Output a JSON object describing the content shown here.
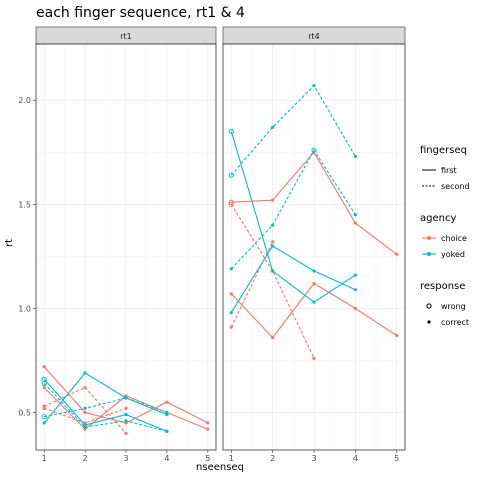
{
  "chart_data": {
    "type": "line",
    "title": "each finger sequence, rt1 & 4",
    "xlabel": "nseenseq",
    "ylabel": "rt",
    "x_ticks": [
      1,
      2,
      3,
      4,
      5
    ],
    "y_ticks": [
      0.5,
      1.0,
      1.5,
      2.0
    ],
    "y_tick_labels": [
      "0.5",
      "1.0",
      "1.5",
      "2.0"
    ],
    "xlim": [
      0.8,
      5.2
    ],
    "ylim": [
      0.32,
      2.27
    ],
    "grid": true,
    "legend_position": "right",
    "colors": {
      "choice": "#f8766d",
      "yoked": "#00bfc4"
    },
    "panels": [
      {
        "label": "rt1",
        "series": [
          {
            "fingerseq": "first",
            "agency": "choice",
            "points": [
              [
                1,
                0.72,
                "correct"
              ],
              [
                2,
                0.5,
                "correct"
              ],
              [
                3,
                0.45,
                "correct"
              ],
              [
                4,
                0.55,
                "correct"
              ],
              [
                5,
                0.45,
                "correct"
              ]
            ]
          },
          {
            "fingerseq": "first",
            "agency": "choice",
            "points": [
              [
                1,
                0.62,
                "correct"
              ],
              [
                2,
                0.42,
                "correct"
              ],
              [
                3,
                0.58,
                "correct"
              ],
              [
                4,
                0.5,
                "correct"
              ],
              [
                5,
                0.42,
                "correct"
              ]
            ]
          },
          {
            "fingerseq": "second",
            "agency": "choice",
            "points": [
              [
                1,
                0.53,
                "correct"
              ],
              [
                2,
                0.62,
                "correct"
              ],
              [
                3,
                0.4,
                "correct"
              ]
            ]
          },
          {
            "fingerseq": "second",
            "agency": "choice",
            "points": [
              [
                1,
                0.52,
                "correct"
              ],
              [
                2,
                0.45,
                "correct"
              ],
              [
                3,
                0.52,
                "correct"
              ]
            ]
          },
          {
            "fingerseq": "first",
            "agency": "yoked",
            "points": [
              [
                1,
                0.45,
                "correct"
              ],
              [
                2,
                0.69,
                "correct"
              ],
              [
                3,
                0.57,
                "correct"
              ],
              [
                4,
                0.49,
                "correct"
              ]
            ]
          },
          {
            "fingerseq": "first",
            "agency": "yoked",
            "points": [
              [
                1,
                0.66,
                "wrong"
              ],
              [
                2,
                0.44,
                "correct"
              ],
              [
                3,
                0.49,
                "correct"
              ],
              [
                4,
                0.41,
                "correct"
              ]
            ]
          },
          {
            "fingerseq": "second",
            "agency": "yoked",
            "points": [
              [
                1,
                0.48,
                "wrong"
              ],
              [
                2,
                0.52,
                "correct"
              ],
              [
                3,
                0.57,
                "correct"
              ],
              [
                4,
                0.5,
                "correct"
              ]
            ]
          },
          {
            "fingerseq": "second",
            "agency": "yoked",
            "points": [
              [
                1,
                0.64,
                "wrong"
              ],
              [
                2,
                0.43,
                "correct"
              ],
              [
                3,
                0.46,
                "correct"
              ],
              [
                4,
                0.41,
                "correct"
              ]
            ]
          }
        ]
      },
      {
        "label": "rt4",
        "series": [
          {
            "fingerseq": "first",
            "agency": "choice",
            "points": [
              [
                1,
                1.51,
                "wrong"
              ],
              [
                2,
                1.52,
                "correct"
              ],
              [
                3,
                1.75,
                "correct"
              ],
              [
                4,
                1.41,
                "correct"
              ],
              [
                5,
                1.26,
                "correct"
              ]
            ]
          },
          {
            "fingerseq": "first",
            "agency": "choice",
            "points": [
              [
                1,
                1.07,
                "correct"
              ],
              [
                2,
                0.86,
                "correct"
              ],
              [
                3,
                1.12,
                "correct"
              ],
              [
                4,
                1.0,
                "correct"
              ],
              [
                5,
                0.87,
                "correct"
              ]
            ]
          },
          {
            "fingerseq": "second",
            "agency": "choice",
            "points": [
              [
                1,
                1.5,
                "wrong"
              ],
              [
                2,
                1.18,
                "correct"
              ],
              [
                3,
                0.76,
                "correct"
              ]
            ]
          },
          {
            "fingerseq": "second",
            "agency": "choice",
            "points": [
              [
                1,
                0.91,
                "correct"
              ],
              [
                2,
                1.32,
                "correct"
              ]
            ]
          },
          {
            "fingerseq": "first",
            "agency": "yoked",
            "points": [
              [
                1,
                1.85,
                "wrong"
              ],
              [
                2,
                1.18,
                "correct"
              ],
              [
                3,
                1.03,
                "correct"
              ],
              [
                4,
                1.16,
                "correct"
              ]
            ]
          },
          {
            "fingerseq": "first",
            "agency": "yoked",
            "points": [
              [
                1,
                0.98,
                "correct"
              ],
              [
                2,
                1.3,
                "correct"
              ],
              [
                3,
                1.18,
                "correct"
              ],
              [
                4,
                1.09,
                "correct"
              ]
            ]
          },
          {
            "fingerseq": "second",
            "agency": "yoked",
            "points": [
              [
                1,
                1.64,
                "wrong"
              ],
              [
                2,
                1.87,
                "correct"
              ],
              [
                3,
                2.07,
                "correct"
              ],
              [
                4,
                1.73,
                "correct"
              ]
            ]
          },
          {
            "fingerseq": "second",
            "agency": "yoked",
            "points": [
              [
                1,
                1.19,
                "correct"
              ],
              [
                2,
                1.4,
                "correct"
              ],
              [
                3,
                1.76,
                "wrong"
              ],
              [
                4,
                1.45,
                "correct"
              ]
            ]
          }
        ]
      }
    ],
    "legends": [
      {
        "title": "fingerseq",
        "kind": "linetype",
        "entries": [
          {
            "label": "first",
            "value": "first"
          },
          {
            "label": "second",
            "value": "second"
          }
        ]
      },
      {
        "title": "agency",
        "kind": "color",
        "entries": [
          {
            "label": "choice",
            "value": "choice"
          },
          {
            "label": "yoked",
            "value": "yoked"
          }
        ]
      },
      {
        "title": "response",
        "kind": "shape",
        "entries": [
          {
            "label": "wrong",
            "value": "wrong"
          },
          {
            "label": "correct",
            "value": "correct"
          }
        ]
      }
    ]
  }
}
